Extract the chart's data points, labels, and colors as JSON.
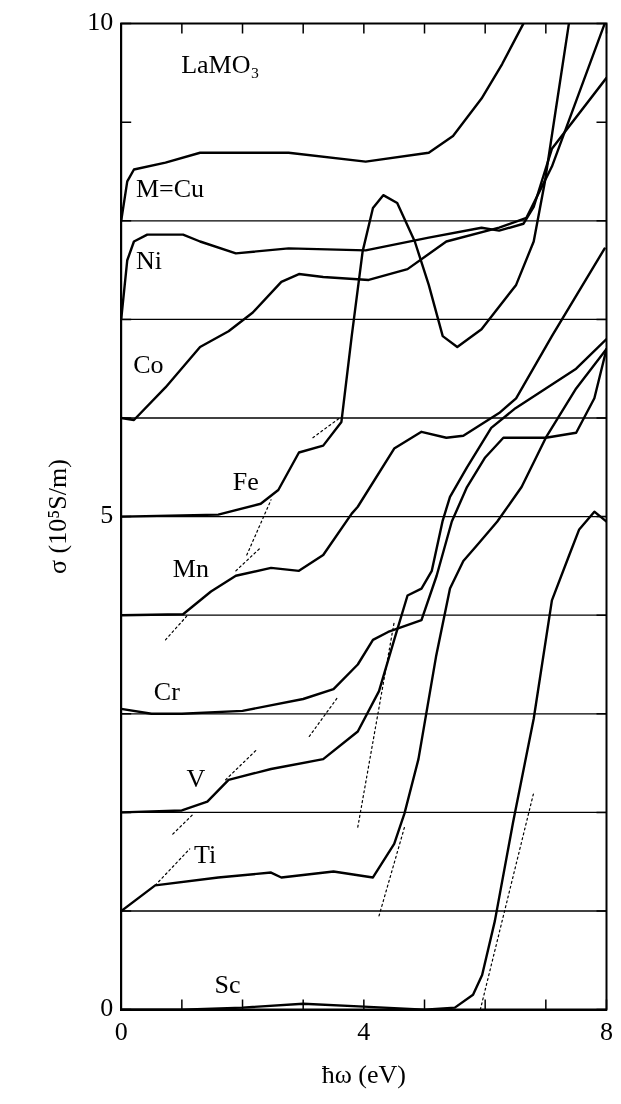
{
  "chart_data": {
    "type": "line",
    "xlabel": "ħω (eV)",
    "ylabel": "σ (10⁵S/m)",
    "annotations": [
      "LaMO₃"
    ],
    "xlim": [
      0,
      8
    ],
    "ylim": [
      0,
      10
    ],
    "xticks": [
      0,
      {
        "value": 1,
        "label": null
      },
      {
        "value": 2,
        "label": null
      },
      {
        "value": 3,
        "label": null
      },
      4,
      {
        "value": 5,
        "label": null
      },
      {
        "value": 6,
        "label": null
      },
      {
        "value": 7,
        "label": null
      },
      8
    ],
    "yticks": [
      0,
      {
        "value": 1,
        "label": null
      },
      {
        "value": 2,
        "label": null
      },
      {
        "value": 3,
        "label": null
      },
      {
        "value": 4,
        "label": null
      },
      5,
      {
        "value": 6,
        "label": null
      },
      {
        "value": 7,
        "label": null
      },
      {
        "value": 8,
        "label": null
      },
      {
        "value": 9,
        "label": null
      },
      10
    ],
    "line_style": "solid",
    "ref_lines": [
      {
        "axis": "y",
        "value": 1
      },
      {
        "axis": "y",
        "value": 2
      },
      {
        "axis": "y",
        "value": 3
      },
      {
        "axis": "y",
        "value": 4
      },
      {
        "axis": "y",
        "value": 5
      },
      {
        "axis": "y",
        "value": 6
      },
      {
        "axis": "y",
        "value": 7
      },
      {
        "axis": "y",
        "value": 8
      }
    ],
    "series": [
      {
        "name": "M=Cu",
        "color": "#000000",
        "x": [
          0,
          0.1,
          0.21,
          0.73,
          1.3,
          2.76,
          4.03,
          5.07,
          5.47,
          5.94,
          6.28,
          6.63
        ],
        "values": [
          8.0,
          8.4,
          8.52,
          8.59,
          8.69,
          8.69,
          8.6,
          8.69,
          8.86,
          9.24,
          9.59,
          10
        ]
      },
      {
        "name": "Ni",
        "color": "#000000",
        "x": [
          0,
          0.1,
          0.21,
          0.43,
          1.02,
          1.3,
          1.89,
          2.76,
          4.03,
          5.07,
          5.94,
          6.23,
          6.63,
          6.8,
          7.1,
          8
        ],
        "values": [
          7.0,
          7.6,
          7.79,
          7.86,
          7.86,
          7.79,
          7.67,
          7.72,
          7.7,
          7.83,
          7.93,
          7.9,
          7.97,
          8.14,
          8.73,
          9.45
        ]
      },
      {
        "name": "Co",
        "color": "#000000",
        "x": [
          0,
          0.21,
          0.73,
          1.3,
          1.77,
          2.17,
          2.64,
          2.93,
          3.33,
          4.08,
          4.72,
          5.36,
          6.23,
          6.68,
          7.1,
          7.97
        ],
        "values": [
          6.0,
          5.98,
          6.31,
          6.72,
          6.88,
          7.07,
          7.38,
          7.46,
          7.43,
          7.4,
          7.51,
          7.79,
          7.93,
          8.03,
          8.55,
          10
        ]
      },
      {
        "name": "Fe",
        "color": "#000000",
        "x": [
          0,
          1.6,
          2.3,
          2.59,
          2.93,
          3.33,
          3.63,
          3.8,
          3.98,
          4.15,
          4.32,
          4.55,
          4.84,
          5.07,
          5.3,
          5.54,
          5.94,
          6.51,
          6.8,
          6.98,
          7.15,
          7.38
        ],
        "values": [
          5.0,
          5.02,
          5.13,
          5.27,
          5.65,
          5.72,
          5.96,
          6.83,
          7.69,
          8.13,
          8.26,
          8.18,
          7.79,
          7.35,
          6.83,
          6.72,
          6.9,
          7.35,
          7.79,
          8.38,
          9.07,
          10
        ]
      },
      {
        "name": "Mn",
        "color": "#000000",
        "x": [
          0,
          1.02,
          1.48,
          1.89,
          2.47,
          2.93,
          3.33,
          3.8,
          3.9,
          4.5,
          4.95,
          5.36,
          5.64,
          6.23,
          6.51,
          7.1,
          7.97
        ],
        "values": [
          4.0,
          4.01,
          4.24,
          4.4,
          4.48,
          4.45,
          4.61,
          5.03,
          5.1,
          5.69,
          5.86,
          5.8,
          5.82,
          6.05,
          6.2,
          6.83,
          7.72
        ]
      },
      {
        "name": "Cr",
        "color": "#000000",
        "x": [
          0,
          0.5,
          1,
          2,
          3,
          3.5,
          3.9,
          4.15,
          4.4,
          4.95,
          5.2,
          5.45,
          5.7,
          6.0,
          6.3,
          7.0,
          7.5,
          7.8,
          8
        ],
        "values": [
          3.05,
          3.0,
          3.0,
          3.03,
          3.15,
          3.25,
          3.5,
          3.75,
          3.83,
          3.95,
          4.4,
          4.95,
          5.3,
          5.6,
          5.8,
          5.8,
          5.85,
          6.2,
          6.7
        ]
      },
      {
        "name": "V",
        "color": "#000000",
        "x": [
          0,
          1.0,
          1.42,
          1.77,
          2.47,
          3.33,
          3.9,
          4.25,
          4.5,
          4.72,
          4.95,
          5.12,
          5.3,
          5.42,
          5.7,
          6.1,
          6.5,
          7.0,
          7.5,
          8
        ],
        "values": [
          2.0,
          2.02,
          2.11,
          2.33,
          2.44,
          2.54,
          2.82,
          3.23,
          3.75,
          4.2,
          4.27,
          4.45,
          4.96,
          5.2,
          5.5,
          5.9,
          6.1,
          6.3,
          6.5,
          6.8
        ]
      },
      {
        "name": "Ti",
        "color": "#000000",
        "x": [
          0,
          0.56,
          1.6,
          2.47,
          2.64,
          3.5,
          4.15,
          4.5,
          4.67,
          4.9,
          5.19,
          5.42,
          5.64,
          5.88,
          6.2,
          6.6,
          7.0,
          7.5,
          8
        ],
        "values": [
          1.0,
          1.26,
          1.34,
          1.39,
          1.34,
          1.4,
          1.34,
          1.68,
          1.99,
          2.54,
          3.58,
          4.27,
          4.55,
          4.72,
          4.95,
          5.3,
          5.8,
          6.3,
          6.7
        ]
      },
      {
        "name": "Sc",
        "color": "#000000",
        "x": [
          0,
          1,
          2,
          3,
          4,
          5,
          5.5,
          5.8,
          5.95,
          6.16,
          6.46,
          6.8,
          7.1,
          7.38,
          7.55,
          7.8,
          8
        ],
        "values": [
          0,
          0,
          0.02,
          0.06,
          0.03,
          0,
          0.02,
          0.15,
          0.35,
          0.9,
          1.9,
          2.95,
          4.15,
          4.6,
          4.87,
          5.05,
          4.95
        ]
      },
      {
        "color": "#000000",
        "line_style": "dotted",
        "x": [
          5.92,
          6.8
        ],
        "values": [
          0,
          2.2
        ]
      },
      {
        "color": "#000000",
        "line_style": "dotted",
        "x": [
          4.25,
          4.67
        ],
        "values": [
          0.95,
          1.85
        ]
      },
      {
        "color": "#000000",
        "line_style": "dotted",
        "x": [
          3.9,
          4.5
        ],
        "values": [
          1.85,
          3.93
        ]
      },
      {
        "color": "#000000",
        "line_style": "dotted",
        "x": [
          3.1,
          3.56
        ],
        "values": [
          2.77,
          3.16
        ]
      },
      {
        "color": "#000000",
        "line_style": "dotted",
        "x": [
          1.72,
          2.24
        ],
        "values": [
          2.33,
          2.64
        ]
      },
      {
        "color": "#000000",
        "line_style": "dotted",
        "x": [
          0.56,
          1.13
        ],
        "values": [
          1.26,
          1.63
        ]
      },
      {
        "color": "#000000",
        "line_style": "dotted",
        "x": [
          0.85,
          1.2
        ],
        "values": [
          1.78,
          1.99
        ]
      },
      {
        "color": "#000000",
        "line_style": "dotted",
        "x": [
          0.73,
          1.08
        ],
        "values": [
          3.75,
          3.99
        ]
      },
      {
        "color": "#000000",
        "line_style": "dotted",
        "x": [
          1.89,
          2.29
        ],
        "values": [
          4.45,
          4.68
        ]
      },
      {
        "color": "#000000",
        "line_style": "dotted",
        "x": [
          2.07,
          2.47
        ],
        "values": [
          4.61,
          5.17
        ]
      },
      {
        "color": "#000000",
        "line_style": "dotted",
        "x": [
          3.16,
          3.6
        ],
        "values": [
          5.8,
          6.0
        ]
      }
    ]
  }
}
